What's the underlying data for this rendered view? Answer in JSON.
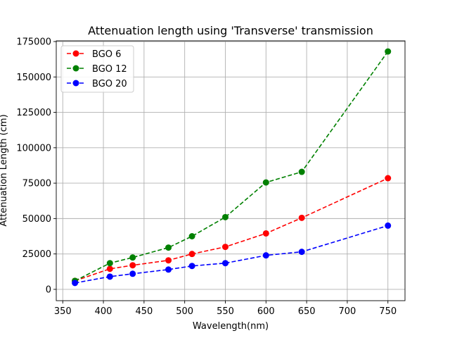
{
  "chart_data": {
    "type": "line",
    "title": "Attenuation length using 'Transverse' transmission",
    "xlabel": "Wavelength(nm)",
    "ylabel": "Attenuation Length (cm)",
    "xlim": [
      342,
      771
    ],
    "ylim": [
      -8000,
      175500
    ],
    "xticks": [
      350,
      400,
      450,
      500,
      550,
      600,
      650,
      700,
      750
    ],
    "yticks": [
      0,
      25000,
      50000,
      75000,
      100000,
      125000,
      150000,
      175000
    ],
    "grid": true,
    "legend_position": "top-left",
    "x": [
      365,
      408,
      436,
      480,
      509,
      550,
      600,
      644,
      750
    ],
    "series": [
      {
        "name": "BGO 6",
        "color": "#ff0000",
        "values": [
          6000,
          14500,
          17000,
          20500,
          25000,
          30000,
          39500,
          50500,
          78500
        ]
      },
      {
        "name": "BGO 12",
        "color": "#008000",
        "values": [
          6000,
          18500,
          22500,
          29500,
          37500,
          51000,
          75500,
          83000,
          168000
        ]
      },
      {
        "name": "BGO 20",
        "color": "#0000ff",
        "values": [
          4500,
          9000,
          11000,
          14000,
          16500,
          18500,
          24000,
          26500,
          45000
        ]
      }
    ]
  }
}
